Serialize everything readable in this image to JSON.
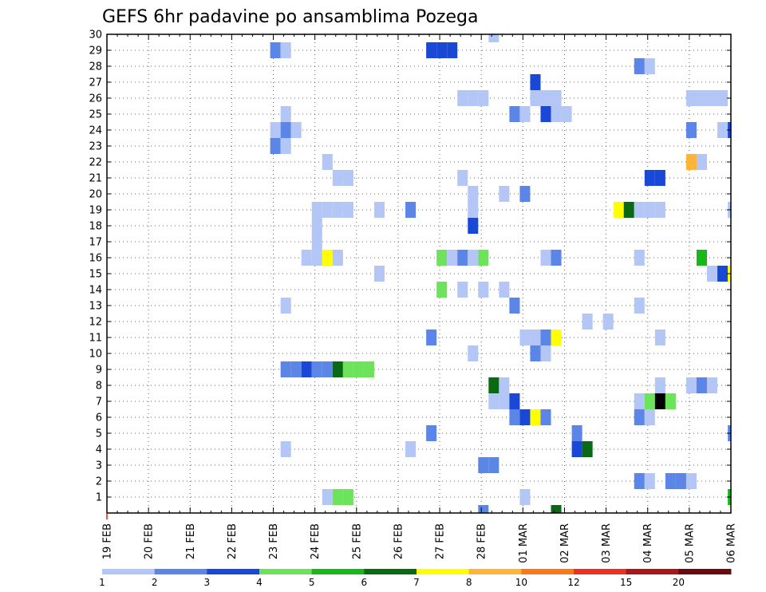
{
  "chart_data": {
    "type": "heatmap",
    "title": "GEFS 6hr padavine po ansamblima Pozega",
    "xlabel": "",
    "ylabel": "",
    "x_unit": "6-hour step from 19 FEB 00Z",
    "x_range": [
      0,
      60
    ],
    "y_range": [
      0,
      30
    ],
    "x_tick_labels": [
      "19 FEB",
      "20 FEB",
      "21 FEB",
      "22 FEB",
      "23 FEB",
      "24 FEB",
      "25 FEB",
      "26 FEB",
      "27 FEB",
      "28 FEB",
      "01 MAR",
      "02 MAR",
      "03 MAR",
      "04 MAR",
      "05 MAR",
      "06 MAR"
    ],
    "y_tick_labels": [
      "1",
      "2",
      "3",
      "4",
      "5",
      "6",
      "7",
      "8",
      "9",
      "10",
      "11",
      "12",
      "13",
      "14",
      "15",
      "16",
      "17",
      "18",
      "19",
      "20",
      "21",
      "22",
      "23",
      "24",
      "25",
      "26",
      "27",
      "28",
      "29",
      "30"
    ],
    "grid": true,
    "colorbar": {
      "position": "bottom",
      "labels": [
        "1",
        "2",
        "3",
        "4",
        "5",
        "6",
        "7",
        "8",
        "10",
        "12",
        "15",
        "20"
      ],
      "colors": [
        "#b3c6f5",
        "#5b86e8",
        "#1a48d6",
        "#6ce35a",
        "#18b818",
        "#0a6a14",
        "#ffff00",
        "#ffb43a",
        "#ff7818",
        "#e83222",
        "#a8181a",
        "#6a0a10"
      ]
    },
    "cells": [
      [
        37.2,
        30,
        1
      ],
      [
        16.2,
        29,
        2
      ],
      [
        17.2,
        29,
        1
      ],
      [
        31.2,
        29,
        3
      ],
      [
        32.2,
        29,
        3
      ],
      [
        33.2,
        29,
        3
      ],
      [
        51.2,
        28,
        2
      ],
      [
        52.2,
        28,
        1
      ],
      [
        41.2,
        27,
        3
      ],
      [
        34.2,
        26,
        1
      ],
      [
        35.2,
        26,
        1
      ],
      [
        36.2,
        26,
        1
      ],
      [
        41.2,
        26,
        1
      ],
      [
        42.2,
        26,
        1
      ],
      [
        43.2,
        26,
        1
      ],
      [
        56.2,
        26,
        1
      ],
      [
        57.2,
        26,
        1
      ],
      [
        58.2,
        26,
        1
      ],
      [
        59.2,
        26,
        1
      ],
      [
        17.2,
        25,
        1
      ],
      [
        39.2,
        25,
        2
      ],
      [
        40.2,
        25,
        1
      ],
      [
        42.2,
        25,
        3
      ],
      [
        43.2,
        25,
        1
      ],
      [
        44.2,
        25,
        1
      ],
      [
        16.2,
        24,
        1
      ],
      [
        17.2,
        24,
        2
      ],
      [
        18.2,
        24,
        1
      ],
      [
        56.2,
        24,
        2
      ],
      [
        59.2,
        24,
        1
      ],
      [
        60.2,
        24,
        3
      ],
      [
        16.2,
        23,
        2
      ],
      [
        17.2,
        23,
        1
      ],
      [
        21.2,
        22,
        1
      ],
      [
        56.2,
        22,
        8
      ],
      [
        57.2,
        22,
        1
      ],
      [
        22.2,
        21,
        1
      ],
      [
        23.2,
        21,
        1
      ],
      [
        34.2,
        21,
        1
      ],
      [
        52.2,
        21,
        3
      ],
      [
        53.2,
        21,
        3
      ],
      [
        35.2,
        20,
        1
      ],
      [
        38.2,
        20,
        1
      ],
      [
        40.2,
        20,
        2
      ],
      [
        20.2,
        19,
        1
      ],
      [
        21.2,
        19,
        1
      ],
      [
        22.2,
        19,
        1
      ],
      [
        23.2,
        19,
        1
      ],
      [
        26.2,
        19,
        1
      ],
      [
        29.2,
        19,
        2
      ],
      [
        35.2,
        19,
        1
      ],
      [
        49.2,
        19,
        7
      ],
      [
        50.2,
        19,
        6
      ],
      [
        51.2,
        19,
        1
      ],
      [
        52.2,
        19,
        1
      ],
      [
        53.2,
        19,
        1
      ],
      [
        60.2,
        19,
        1
      ],
      [
        20.2,
        18,
        1
      ],
      [
        35.2,
        18,
        3
      ],
      [
        20.2,
        17,
        1
      ],
      [
        19.2,
        16,
        1
      ],
      [
        20.2,
        16,
        1
      ],
      [
        21.2,
        16,
        7
      ],
      [
        22.2,
        16,
        1
      ],
      [
        32.2,
        16,
        4
      ],
      [
        33.2,
        16,
        1
      ],
      [
        34.2,
        16,
        2
      ],
      [
        35.2,
        16,
        1
      ],
      [
        36.2,
        16,
        4
      ],
      [
        42.2,
        16,
        1
      ],
      [
        43.2,
        16,
        2
      ],
      [
        51.2,
        16,
        1
      ],
      [
        57.2,
        16,
        5
      ],
      [
        26.2,
        15,
        1
      ],
      [
        58.2,
        15,
        1
      ],
      [
        59.2,
        15,
        3
      ],
      [
        60.2,
        15,
        7
      ],
      [
        32.2,
        14,
        4
      ],
      [
        34.2,
        14,
        1
      ],
      [
        36.2,
        14,
        1
      ],
      [
        38.2,
        14,
        1
      ],
      [
        17.2,
        13,
        1
      ],
      [
        39.2,
        13,
        2
      ],
      [
        51.2,
        13,
        1
      ],
      [
        46.2,
        12,
        1
      ],
      [
        48.2,
        12,
        1
      ],
      [
        31.2,
        11,
        2
      ],
      [
        40.2,
        11,
        1
      ],
      [
        41.2,
        11,
        1
      ],
      [
        42.2,
        11,
        2
      ],
      [
        43.2,
        11,
        7
      ],
      [
        53.2,
        11,
        1
      ],
      [
        35.2,
        10,
        1
      ],
      [
        41.2,
        10,
        2
      ],
      [
        42.2,
        10,
        1
      ],
      [
        17.2,
        9,
        2
      ],
      [
        18.2,
        9,
        2
      ],
      [
        19.2,
        9,
        3
      ],
      [
        20.2,
        9,
        2
      ],
      [
        21.2,
        9,
        2
      ],
      [
        22.2,
        9,
        6
      ],
      [
        23.2,
        9,
        4
      ],
      [
        24.2,
        9,
        4
      ],
      [
        25.2,
        9,
        4
      ],
      [
        37.2,
        8,
        6
      ],
      [
        38.2,
        8,
        1
      ],
      [
        53.2,
        8,
        1
      ],
      [
        56.2,
        8,
        1
      ],
      [
        57.2,
        8,
        2
      ],
      [
        58.2,
        8,
        1
      ],
      [
        37.2,
        7,
        1
      ],
      [
        38.2,
        7,
        1
      ],
      [
        39.2,
        7,
        3
      ],
      [
        51.2,
        7,
        1
      ],
      [
        52.2,
        7,
        4
      ],
      [
        53.2,
        7,
        14
      ],
      [
        54.2,
        7,
        4
      ],
      [
        39.2,
        6,
        2
      ],
      [
        40.2,
        6,
        3
      ],
      [
        41.2,
        6,
        7
      ],
      [
        42.2,
        6,
        2
      ],
      [
        51.2,
        6,
        2
      ],
      [
        52.2,
        6,
        1
      ],
      [
        31.2,
        5,
        2
      ],
      [
        45.2,
        5,
        2
      ],
      [
        60.2,
        5,
        2
      ],
      [
        17.2,
        4,
        1
      ],
      [
        29.2,
        4,
        1
      ],
      [
        45.2,
        4,
        3
      ],
      [
        46.2,
        4,
        6
      ],
      [
        36.2,
        3,
        2
      ],
      [
        37.2,
        3,
        2
      ],
      [
        51.2,
        2,
        2
      ],
      [
        52.2,
        2,
        1
      ],
      [
        54.2,
        2,
        2
      ],
      [
        55.2,
        2,
        2
      ],
      [
        56.2,
        2,
        1
      ],
      [
        21.2,
        1,
        1
      ],
      [
        22.2,
        1,
        4
      ],
      [
        23.2,
        1,
        4
      ],
      [
        40.2,
        1,
        1
      ],
      [
        60.2,
        1,
        5
      ],
      [
        36.2,
        0,
        2
      ],
      [
        43.2,
        0,
        6
      ]
    ]
  }
}
